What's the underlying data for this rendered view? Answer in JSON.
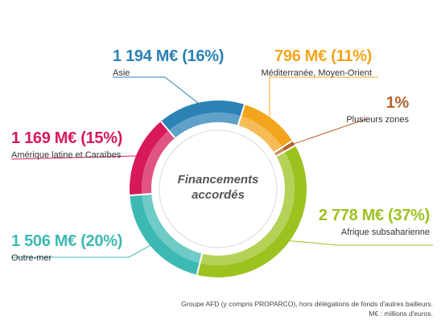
{
  "chart_data": {
    "type": "pie",
    "center_label": [
      "Financements",
      "accordés"
    ],
    "slices": [
      {
        "label": "Plusieurs zones",
        "display": "1%",
        "value": 1,
        "amount": "",
        "color": "#b5632c"
      },
      {
        "label": "Afrique subsaharienne",
        "display": "2 778 M€ (37%)",
        "value": 37,
        "amount": 2778,
        "color": "#9cc21f"
      },
      {
        "label": "Outre-mer",
        "display": "1 506 M€ (20%)",
        "value": 20,
        "amount": 1506,
        "color": "#3db9b3"
      },
      {
        "label": "Amérique latine et Caraïbes",
        "display": "1 169 M€ (15%)",
        "value": 15,
        "amount": 1169,
        "color": "#d7195c"
      },
      {
        "label": "Asie",
        "display": "1 194 M€ (16%)",
        "value": 16,
        "amount": 1194,
        "color": "#2a82b5"
      },
      {
        "label": "Méditerranée, Moyen-Orient",
        "display": "796 M€ (11%)",
        "value": 11,
        "amount": 796,
        "color": "#f2a51c"
      }
    ],
    "units": "M€"
  },
  "note": [
    "Groupe AFD (y compris PROPARCO), hors délégations de fonds d'autres bailleurs.",
    "M€ : millions d'euros."
  ]
}
